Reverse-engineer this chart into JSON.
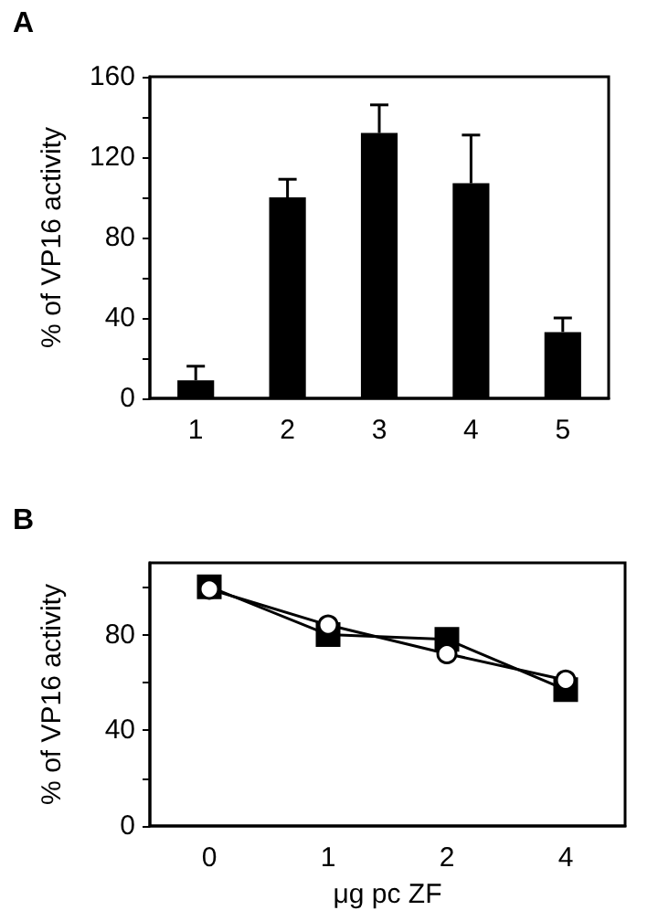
{
  "chart_data": [
    {
      "type": "bar",
      "title": "A",
      "ylabel": "% of VP16 activity",
      "categories": [
        "1",
        "2",
        "3",
        "4",
        "5"
      ],
      "series": [
        {
          "color": "#000000",
          "values": [
            9,
            100,
            132,
            107,
            33
          ],
          "errors": [
            [
              9,
              16
            ],
            [
              100,
              109
            ],
            [
              132,
              146
            ],
            [
              107,
              131
            ],
            [
              33,
              40
            ]
          ]
        }
      ],
      "ylim": [
        0,
        160
      ],
      "yticks": [
        0,
        {
          "value": 20,
          "label": null
        },
        40,
        {
          "value": 60,
          "label": null
        },
        80,
        {
          "value": 100,
          "label": null
        },
        120,
        {
          "value": 140,
          "label": null
        },
        160
      ],
      "grid": false
    },
    {
      "type": "line",
      "title": "B",
      "ylabel": "% of VP16 activity",
      "xlabel": "μg pc ZF",
      "categories": [
        "0",
        "1",
        "2",
        "4"
      ],
      "series": [
        {
          "color": "#000000",
          "marker": "square",
          "values": [
            100,
            80,
            78,
            57
          ]
        },
        {
          "color": "#000000",
          "marker": "circle",
          "values": [
            99,
            84,
            72,
            61
          ]
        }
      ],
      "ylim": [
        0,
        110
      ],
      "yticks": [
        0,
        {
          "value": 20,
          "label": null
        },
        40,
        {
          "value": 60,
          "label": null
        },
        80,
        {
          "value": 100,
          "label": null
        }
      ],
      "grid": false
    }
  ]
}
